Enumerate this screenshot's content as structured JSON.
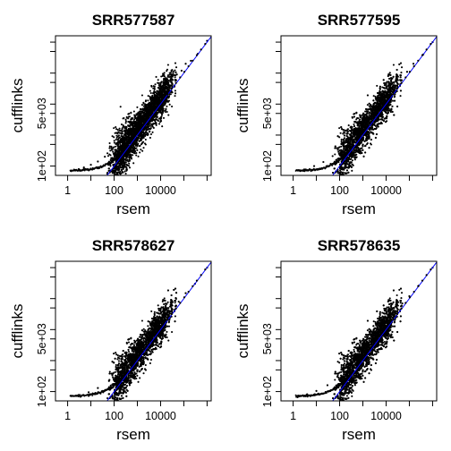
{
  "chart_data": [
    {
      "type": "scatter",
      "title": "SRR577587",
      "xlabel": "rsem",
      "ylabel": "cufflinks",
      "x_scale": "log10",
      "y_scale": "log10",
      "x_ticks": [
        "1",
        "100",
        "10000"
      ],
      "y_ticks": [
        "1e+02",
        "5e+03"
      ],
      "x_range": [
        0.3,
        1500000.0
      ],
      "y_range": [
        50,
        1600000.0
      ],
      "reference_line": {
        "slope": 1,
        "color": "#0000ff"
      },
      "series": [
        {
          "color": "#000000",
          "points": [
            [
              2,
              75
            ],
            [
              3,
              80
            ],
            [
              5,
              90
            ],
            [
              10,
              110
            ],
            [
              20,
              140
            ],
            [
              40,
              200
            ],
            [
              80,
              330
            ],
            [
              150,
              600
            ],
            [
              300,
              1000
            ],
            [
              500,
              800
            ],
            [
              800,
              2000
            ],
            [
              1000,
              1500
            ],
            [
              1500,
              4000
            ],
            [
              2000,
              2500
            ],
            [
              3000,
              5000
            ],
            [
              4000,
              9000
            ],
            [
              6000,
              12000
            ],
            [
              8000,
              7000
            ],
            [
              10000,
              20000
            ],
            [
              15000,
              30000
            ],
            [
              20000,
              25000
            ],
            [
              30000,
              50000
            ],
            [
              50000,
              90000
            ],
            [
              80000,
              120000
            ],
            [
              120000,
              200000
            ],
            [
              200000,
              250000
            ],
            [
              400000,
              420000
            ],
            [
              1000000,
              1100000
            ]
          ]
        }
      ]
    },
    {
      "type": "scatter",
      "title": "SRR577595",
      "xlabel": "rsem",
      "ylabel": "cufflinks",
      "x_scale": "log10",
      "y_scale": "log10",
      "x_ticks": [
        "1",
        "100",
        "10000"
      ],
      "y_ticks": [
        "1e+02",
        "5e+03"
      ],
      "x_range": [
        0.3,
        1500000.0
      ],
      "y_range": [
        50,
        1600000.0
      ],
      "reference_line": {
        "slope": 1,
        "color": "#0000ff"
      },
      "series": [
        {
          "color": "#000000",
          "points": [
            [
              3,
              78
            ],
            [
              8,
              100
            ],
            [
              20,
              135
            ],
            [
              50,
              210
            ],
            [
              100,
              320
            ],
            [
              200,
              700
            ],
            [
              400,
              900
            ],
            [
              700,
              1800
            ],
            [
              1000,
              1400
            ],
            [
              2000,
              3500
            ],
            [
              3000,
              2800
            ],
            [
              5000,
              8000
            ],
            [
              8000,
              11000
            ],
            [
              10000,
              16000
            ],
            [
              20000,
              28000
            ],
            [
              40000,
              60000
            ],
            [
              80000,
              110000
            ],
            [
              150000,
              200000
            ],
            [
              400000,
              400000
            ],
            [
              1000000,
              1000000
            ]
          ]
        }
      ]
    },
    {
      "type": "scatter",
      "title": "SRR578627",
      "xlabel": "rsem",
      "ylabel": "cufflinks",
      "x_scale": "log10",
      "y_scale": "log10",
      "x_ticks": [
        "1",
        "100",
        "10000"
      ],
      "y_ticks": [
        "1e+02",
        "5e+03"
      ],
      "x_range": [
        0.3,
        1500000.0
      ],
      "y_range": [
        50,
        1600000.0
      ],
      "reference_line": {
        "slope": 1,
        "color": "#0000ff"
      },
      "series": [
        {
          "color": "#000000",
          "points": [
            [
              1.5,
              72
            ],
            [
              3,
              78
            ],
            [
              8,
              95
            ],
            [
              20,
              130
            ],
            [
              60,
              220
            ],
            [
              150,
              500
            ],
            [
              300,
              900
            ],
            [
              600,
              1500
            ],
            [
              1000,
              2200
            ],
            [
              2000,
              3000
            ],
            [
              4000,
              7000
            ],
            [
              8000,
              10000
            ],
            [
              15000,
              22000
            ],
            [
              30000,
              45000
            ],
            [
              60000,
              80000
            ],
            [
              120000,
              150000
            ],
            [
              300000,
              300000
            ],
            [
              1000000,
              1000000
            ]
          ]
        }
      ]
    },
    {
      "type": "scatter",
      "title": "SRR578635",
      "xlabel": "rsem",
      "ylabel": "cufflinks",
      "x_scale": "log10",
      "y_scale": "log10",
      "x_ticks": [
        "1",
        "100",
        "10000"
      ],
      "y_ticks": [
        "1e+02",
        "5e+03"
      ],
      "x_range": [
        0.3,
        1500000.0
      ],
      "y_range": [
        50,
        1600000.0
      ],
      "reference_line": {
        "slope": 1,
        "color": "#0000ff"
      },
      "series": [
        {
          "color": "#000000",
          "points": [
            [
              1.5,
              72
            ],
            [
              4,
              82
            ],
            [
              10,
              105
            ],
            [
              30,
              160
            ],
            [
              80,
              300
            ],
            [
              200,
              600
            ],
            [
              500,
              1100
            ],
            [
              900,
              1800
            ],
            [
              1500,
              2500
            ],
            [
              3000,
              4500
            ],
            [
              6000,
              9000
            ],
            [
              12000,
              16000
            ],
            [
              25000,
              35000
            ],
            [
              50000,
              70000
            ],
            [
              100000,
              120000
            ],
            [
              250000,
              260000
            ],
            [
              1000000,
              1000000
            ]
          ]
        }
      ]
    }
  ]
}
